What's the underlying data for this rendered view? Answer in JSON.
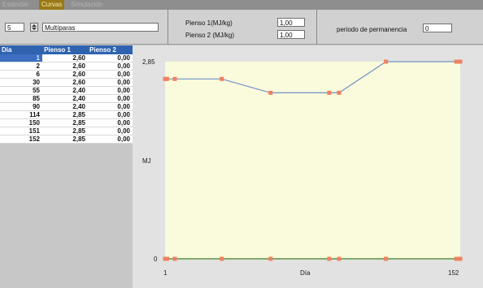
{
  "tabs": [
    {
      "label": "Estándar",
      "active": false
    },
    {
      "label": "Curvas",
      "active": true
    },
    {
      "label": "Simulación",
      "active": false
    }
  ],
  "toolbar": {
    "count_value": "5",
    "curve_name": "Multíparas",
    "pienso1_label": "Pienso 1(MJ/kg)",
    "pienso1_value": "1,00",
    "pienso2_label": "Pienso 2 (MJ/kg)",
    "pienso2_value": "1,00",
    "periodo_label": "periodo de permanencia",
    "periodo_value": "0"
  },
  "table": {
    "headers": [
      "Día",
      "Pienso 1",
      "Pienso 2"
    ],
    "selected_row": 0,
    "rows": [
      [
        "1",
        "2,60",
        "0,00"
      ],
      [
        "2",
        "2,60",
        "0,00"
      ],
      [
        "6",
        "2,60",
        "0,00"
      ],
      [
        "30",
        "2,60",
        "0,00"
      ],
      [
        "55",
        "2,40",
        "0,00"
      ],
      [
        "85",
        "2,40",
        "0,00"
      ],
      [
        "90",
        "2,40",
        "0,00"
      ],
      [
        "114",
        "2,85",
        "0,00"
      ],
      [
        "150",
        "2,85",
        "0,00"
      ],
      [
        "151",
        "2,85",
        "0,00"
      ],
      [
        "152",
        "2,85",
        "0,00"
      ]
    ]
  },
  "chart_data": {
    "type": "line",
    "ylabel": "MJ",
    "xlabel": "Día",
    "xlim": [
      1,
      152
    ],
    "ylim": [
      0,
      2.85
    ],
    "y_ticks": [
      "2,85",
      "0"
    ],
    "x_ticks": [
      "1",
      "152"
    ],
    "grid": false,
    "series": [
      {
        "color": "#6f92c8",
        "x": [
          1,
          2,
          6,
          30,
          55,
          85,
          90,
          114,
          150,
          151,
          152
        ],
        "y": [
          2.6,
          2.6,
          2.6,
          2.6,
          2.4,
          2.4,
          2.4,
          2.85,
          2.85,
          2.85,
          2.85
        ]
      },
      {
        "color": "#7faa6a",
        "x": [
          1,
          2,
          6,
          30,
          55,
          85,
          90,
          114,
          150,
          151,
          152
        ],
        "y": [
          0,
          0,
          0,
          0,
          0,
          0,
          0,
          0,
          0,
          0,
          0
        ]
      }
    ],
    "marker_color": "#f08060",
    "plot_background": "#fafadc"
  }
}
